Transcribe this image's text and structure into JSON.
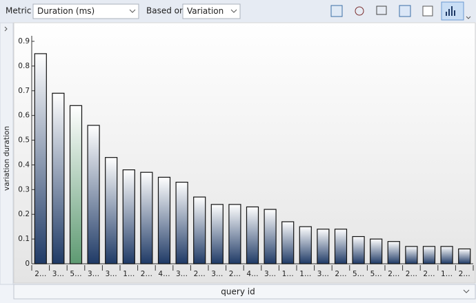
{
  "toolbar": {
    "metric_label": "Metric",
    "metric_value": "Duration (ms)",
    "based_on_label": "Based on",
    "based_on_value": "Variation"
  },
  "chart_data": {
    "type": "bar",
    "categories": [
      "2…",
      "3…",
      "5…",
      "3…",
      "3…",
      "1…",
      "2…",
      "4…",
      "3…",
      "2…",
      "3…",
      "2…",
      "4…",
      "3…",
      "1…",
      "1…",
      "3…",
      "2…",
      "5…",
      "5…",
      "2…",
      "2…",
      "2…",
      "1…",
      "2…"
    ],
    "values": [
      0.85,
      0.69,
      0.64,
      0.56,
      0.43,
      0.38,
      0.37,
      0.35,
      0.33,
      0.27,
      0.24,
      0.24,
      0.23,
      0.22,
      0.17,
      0.15,
      0.14,
      0.14,
      0.11,
      0.1,
      0.09,
      0.07,
      0.07,
      0.07,
      0.06
    ],
    "ylabel": "variation duration",
    "xlabel": "query id",
    "ylim": [
      0,
      0.9
    ],
    "yticks": [
      0,
      0.1,
      0.2,
      0.3,
      0.4,
      0.5,
      0.6,
      0.7,
      0.8,
      0.9
    ],
    "color": "#1f3a66",
    "highlight": {
      "index": 2,
      "color": "#5e9a72"
    }
  }
}
